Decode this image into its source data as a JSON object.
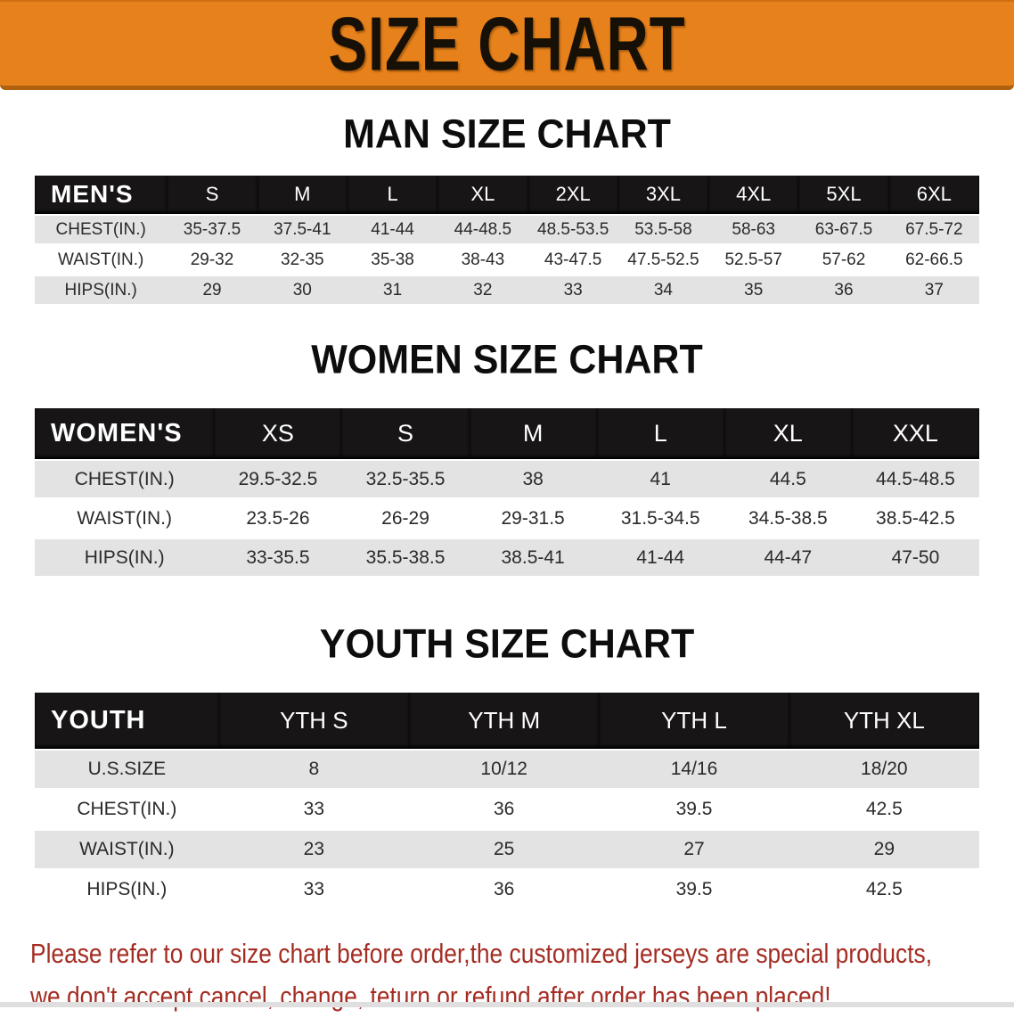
{
  "banner": {
    "title": "SIZE CHART"
  },
  "colors": {
    "banner_bg": "#e6811b",
    "header_bar_bg": "#171515",
    "header_bar_text": "#ffffff",
    "row_gray_bg": "#e3e3e3",
    "row_white_bg": "#ffffff",
    "body_text": "#2a2a2a",
    "note_text": "#a42d23"
  },
  "sections": [
    {
      "heading": "MAN SIZE CHART",
      "table": {
        "corner_label": "MEN'S",
        "columns": [
          "S",
          "M",
          "L",
          "XL",
          "2XL",
          "3XL",
          "4XL",
          "5XL",
          "6XL"
        ],
        "rows": [
          {
            "label": "CHEST(IN.)",
            "values": [
              "35-37.5",
              "37.5-41",
              "41-44",
              "44-48.5",
              "48.5-53.5",
              "53.5-58",
              "58-63",
              "63-67.5",
              "67.5-72"
            ]
          },
          {
            "label": "WAIST(IN.)",
            "values": [
              "29-32",
              "32-35",
              "35-38",
              "38-43",
              "43-47.5",
              "47.5-52.5",
              "52.5-57",
              "57-62",
              "62-66.5"
            ]
          },
          {
            "label": "HIPS(IN.)",
            "values": [
              "29",
              "30",
              "31",
              "32",
              "33",
              "34",
              "35",
              "36",
              "37"
            ]
          }
        ]
      }
    },
    {
      "heading": "WOMEN SIZE CHART",
      "table": {
        "corner_label": "WOMEN'S",
        "columns": [
          "XS",
          "S",
          "M",
          "L",
          "XL",
          "XXL"
        ],
        "rows": [
          {
            "label": "CHEST(IN.)",
            "values": [
              "29.5-32.5",
              "32.5-35.5",
              "38",
              "41",
              "44.5",
              "44.5-48.5"
            ]
          },
          {
            "label": "WAIST(IN.)",
            "values": [
              "23.5-26",
              "26-29",
              "29-31.5",
              "31.5-34.5",
              "34.5-38.5",
              "38.5-42.5"
            ]
          },
          {
            "label": "HIPS(IN.)",
            "values": [
              "33-35.5",
              "35.5-38.5",
              "38.5-41",
              "41-44",
              "44-47",
              "47-50"
            ]
          }
        ]
      }
    },
    {
      "heading": "YOUTH SIZE CHART",
      "table": {
        "corner_label": "YOUTH",
        "columns": [
          "YTH S",
          "YTH M",
          "YTH L",
          "YTH XL"
        ],
        "rows": [
          {
            "label": "U.S.SIZE",
            "values": [
              "8",
              "10/12",
              "14/16",
              "18/20"
            ]
          },
          {
            "label": "CHEST(IN.)",
            "values": [
              "33",
              "36",
              "39.5",
              "42.5"
            ]
          },
          {
            "label": "WAIST(IN.)",
            "values": [
              "23",
              "25",
              "27",
              "29"
            ]
          },
          {
            "label": "HIPS(IN.)",
            "values": [
              "33",
              "36",
              "39.5",
              "42.5"
            ]
          }
        ]
      }
    }
  ],
  "footnote": {
    "lines": [
      "Please refer to our size chart before order,the customized jerseys are special products,",
      "we don't accept cancel, change, teturn or refund after order has been placed!"
    ]
  }
}
